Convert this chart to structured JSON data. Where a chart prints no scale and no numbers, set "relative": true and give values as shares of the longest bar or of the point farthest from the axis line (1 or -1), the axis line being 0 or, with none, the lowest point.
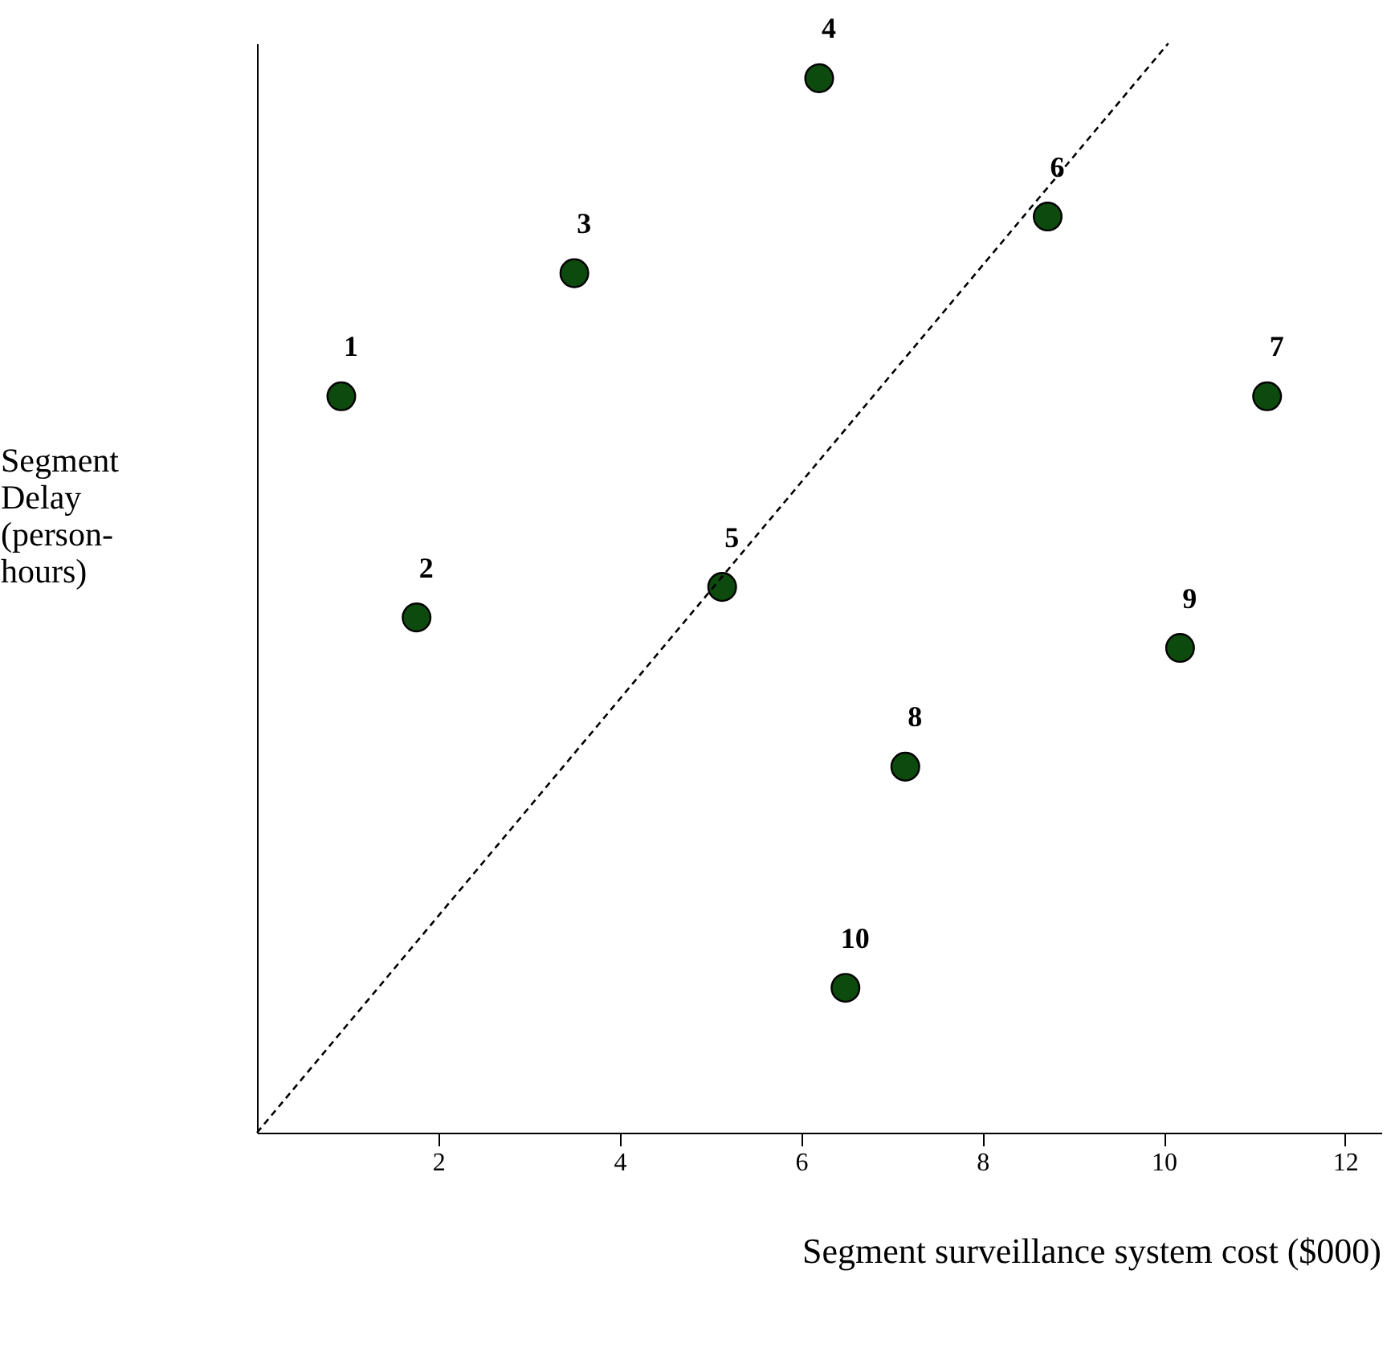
{
  "chart_data": {
    "type": "scatter",
    "xlabel": "Segment surveillance system cost ($000)",
    "ylabel": "Segment Delay (person-hours)",
    "relative": true,
    "xlim": [
      0,
      12.4
    ],
    "xticks": [
      2,
      4,
      6,
      8,
      10,
      12
    ],
    "grid": false,
    "legend": false,
    "marker": "circle",
    "series": [
      {
        "color": "#0d4a0d",
        "x": [
          0.93,
          1.76,
          3.5,
          6.2,
          5.13,
          8.72,
          11.14,
          7.15,
          10.18,
          6.49
        ],
        "values": [
          0.676,
          0.473,
          0.789,
          0.968,
          0.501,
          0.841,
          0.676,
          0.336,
          0.445,
          0.133
        ]
      },
      {
        "type": "line",
        "color": "#000000",
        "line_style": "dashed",
        "marker": "none",
        "x": [
          0,
          10.05
        ],
        "values": [
          0,
          1
        ]
      }
    ],
    "annotations": [
      {
        "text": "1",
        "x": 0.93,
        "y": 0.676
      },
      {
        "text": "2",
        "x": 1.76,
        "y": 0.473
      },
      {
        "text": "3",
        "x": 3.5,
        "y": 0.789
      },
      {
        "text": "4",
        "x": 6.2,
        "y": 0.968
      },
      {
        "text": "5",
        "x": 5.13,
        "y": 0.501
      },
      {
        "text": "6",
        "x": 8.72,
        "y": 0.841
      },
      {
        "text": "7",
        "x": 11.14,
        "y": 0.676
      },
      {
        "text": "8",
        "x": 7.15,
        "y": 0.336
      },
      {
        "text": "9",
        "x": 10.18,
        "y": 0.445
      },
      {
        "text": "10",
        "x": 6.49,
        "y": 0.133
      }
    ]
  }
}
